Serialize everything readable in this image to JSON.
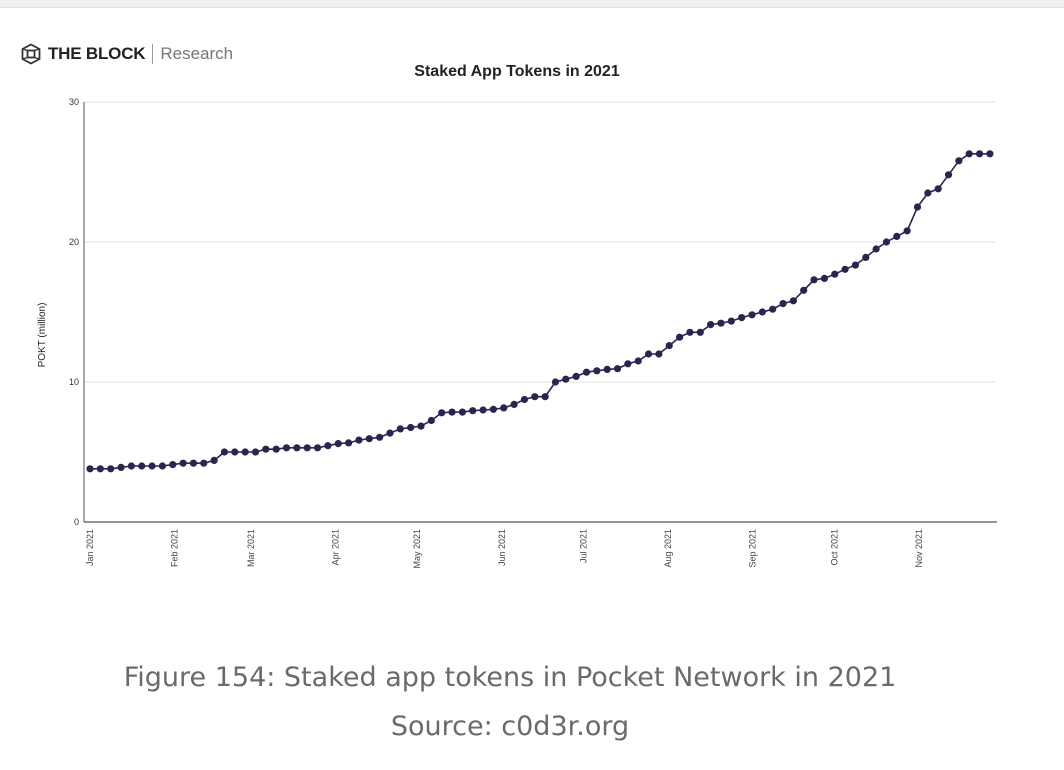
{
  "logo": {
    "brand": "THE BLOCK",
    "sub": "Research"
  },
  "caption": {
    "figure": "Figure 154: Staked app tokens in Pocket Network in 2021",
    "source": "Source: c0d3r.org"
  },
  "chart_data": {
    "type": "line",
    "title": "Staked App Tokens in 2021",
    "xlabel": "",
    "ylabel": "POKT (million)",
    "ylim": [
      0,
      30
    ],
    "yticks": [
      0,
      10,
      20,
      30
    ],
    "xlim": [
      "2021-01-01",
      "2021-11-29"
    ],
    "xticks": [
      {
        "date": "2021-01-01",
        "label": "Jan 2021"
      },
      {
        "date": "2021-02-01",
        "label": "Feb 2021"
      },
      {
        "date": "2021-03-01",
        "label": "Mar 2021"
      },
      {
        "date": "2021-04-01",
        "label": "Apr 2021"
      },
      {
        "date": "2021-05-01",
        "label": "May 2021"
      },
      {
        "date": "2021-06-01",
        "label": "Jun 2021"
      },
      {
        "date": "2021-07-01",
        "label": "Jul 2021"
      },
      {
        "date": "2021-08-01",
        "label": "Aug 2021"
      },
      {
        "date": "2021-09-01",
        "label": "Sep 2021"
      },
      {
        "date": "2021-10-01",
        "label": "Oct 2021"
      },
      {
        "date": "2021-11-01",
        "label": "Nov 2021"
      }
    ],
    "first_date": "2021-01-01",
    "last_date": "2021-11-27",
    "values": [
      3.8,
      3.8,
      3.8,
      3.9,
      4.0,
      4.0,
      4.0,
      4.0,
      4.1,
      4.2,
      4.2,
      4.2,
      4.4,
      5.0,
      5.0,
      5.0,
      5.0,
      5.2,
      5.2,
      5.3,
      5.3,
      5.3,
      5.3,
      5.45,
      5.6,
      5.65,
      5.85,
      5.95,
      6.05,
      6.35,
      6.65,
      6.75,
      6.85,
      7.25,
      7.8,
      7.85,
      7.85,
      7.95,
      8.0,
      8.05,
      8.15,
      8.4,
      8.75,
      8.95,
      8.95,
      10.0,
      10.2,
      10.4,
      10.7,
      10.8,
      10.9,
      10.95,
      11.3,
      11.5,
      12.0,
      12.0,
      12.6,
      13.2,
      13.55,
      13.55,
      14.1,
      14.2,
      14.35,
      14.6,
      14.8,
      15.0,
      15.2,
      15.6,
      15.8,
      16.55,
      17.3,
      17.4,
      17.7,
      18.05,
      18.35,
      18.9,
      19.5,
      20.0,
      20.4,
      20.8,
      22.5,
      23.5,
      23.8,
      24.8,
      25.8,
      26.3,
      26.3,
      26.3
    ],
    "grid": true,
    "legend": "none",
    "colors": {
      "line": "#2a2450",
      "grid": "#e3e3e3",
      "axis": "#555555"
    }
  }
}
